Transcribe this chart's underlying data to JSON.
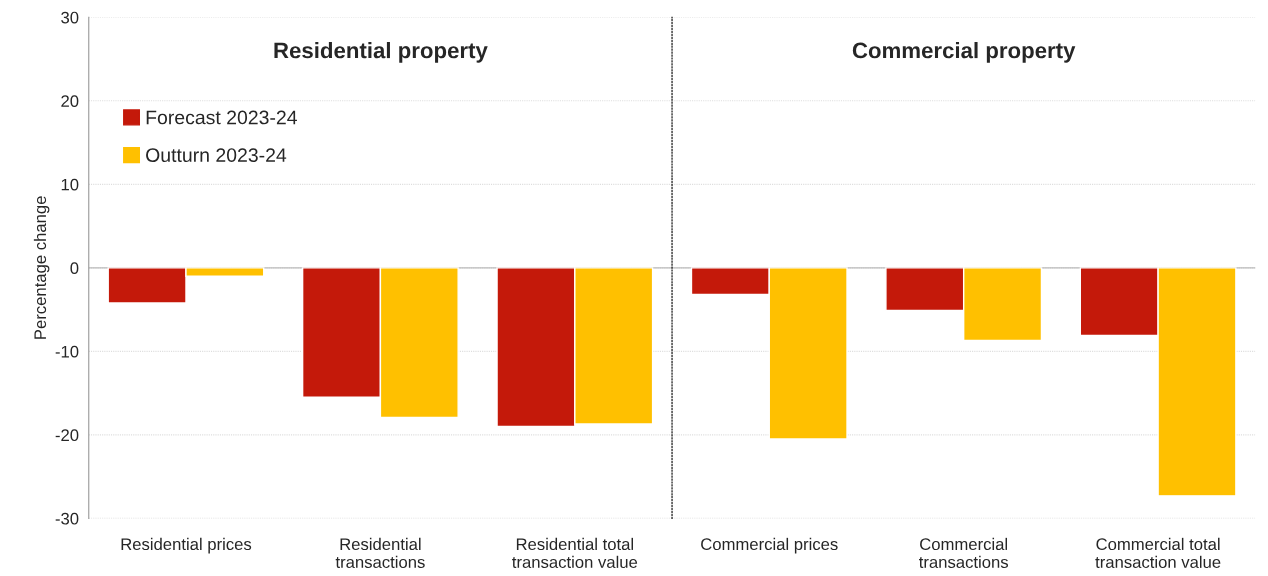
{
  "chart_data": [
    {
      "type": "bar",
      "title": "Residential property",
      "ylabel": "Percentage change",
      "categories": [
        "Residential prices",
        "Residential transactions",
        "Residential total transaction value"
      ],
      "series": [
        {
          "name": "Forecast 2023-24",
          "color": "#c4190a",
          "values": [
            -4.2,
            -15.5,
            -19.0
          ]
        },
        {
          "name": "Outturn 2023-24",
          "color": "#ffc000",
          "values": [
            -1.0,
            -17.9,
            -18.7
          ]
        }
      ],
      "ylim": [
        -30,
        30
      ],
      "yticks": [
        -30,
        -20,
        -10,
        0,
        10,
        20,
        30
      ],
      "grid": "y",
      "legend": "top left"
    },
    {
      "type": "bar",
      "title": "Commercial property",
      "categories": [
        "Commercial prices",
        "Commercial transactions",
        "Commercial total transaction value"
      ],
      "series": [
        {
          "color": "#c4190a",
          "values": [
            -3.2,
            -5.1,
            -8.1
          ]
        },
        {
          "color": "#ffc000",
          "values": [
            -20.5,
            -8.7,
            -27.3
          ]
        }
      ],
      "ylim": [
        -30,
        30
      ],
      "yticks": [
        -30,
        -20,
        -10,
        0,
        10,
        20,
        30
      ],
      "grid": "y",
      "tick_labels": "x"
    }
  ]
}
